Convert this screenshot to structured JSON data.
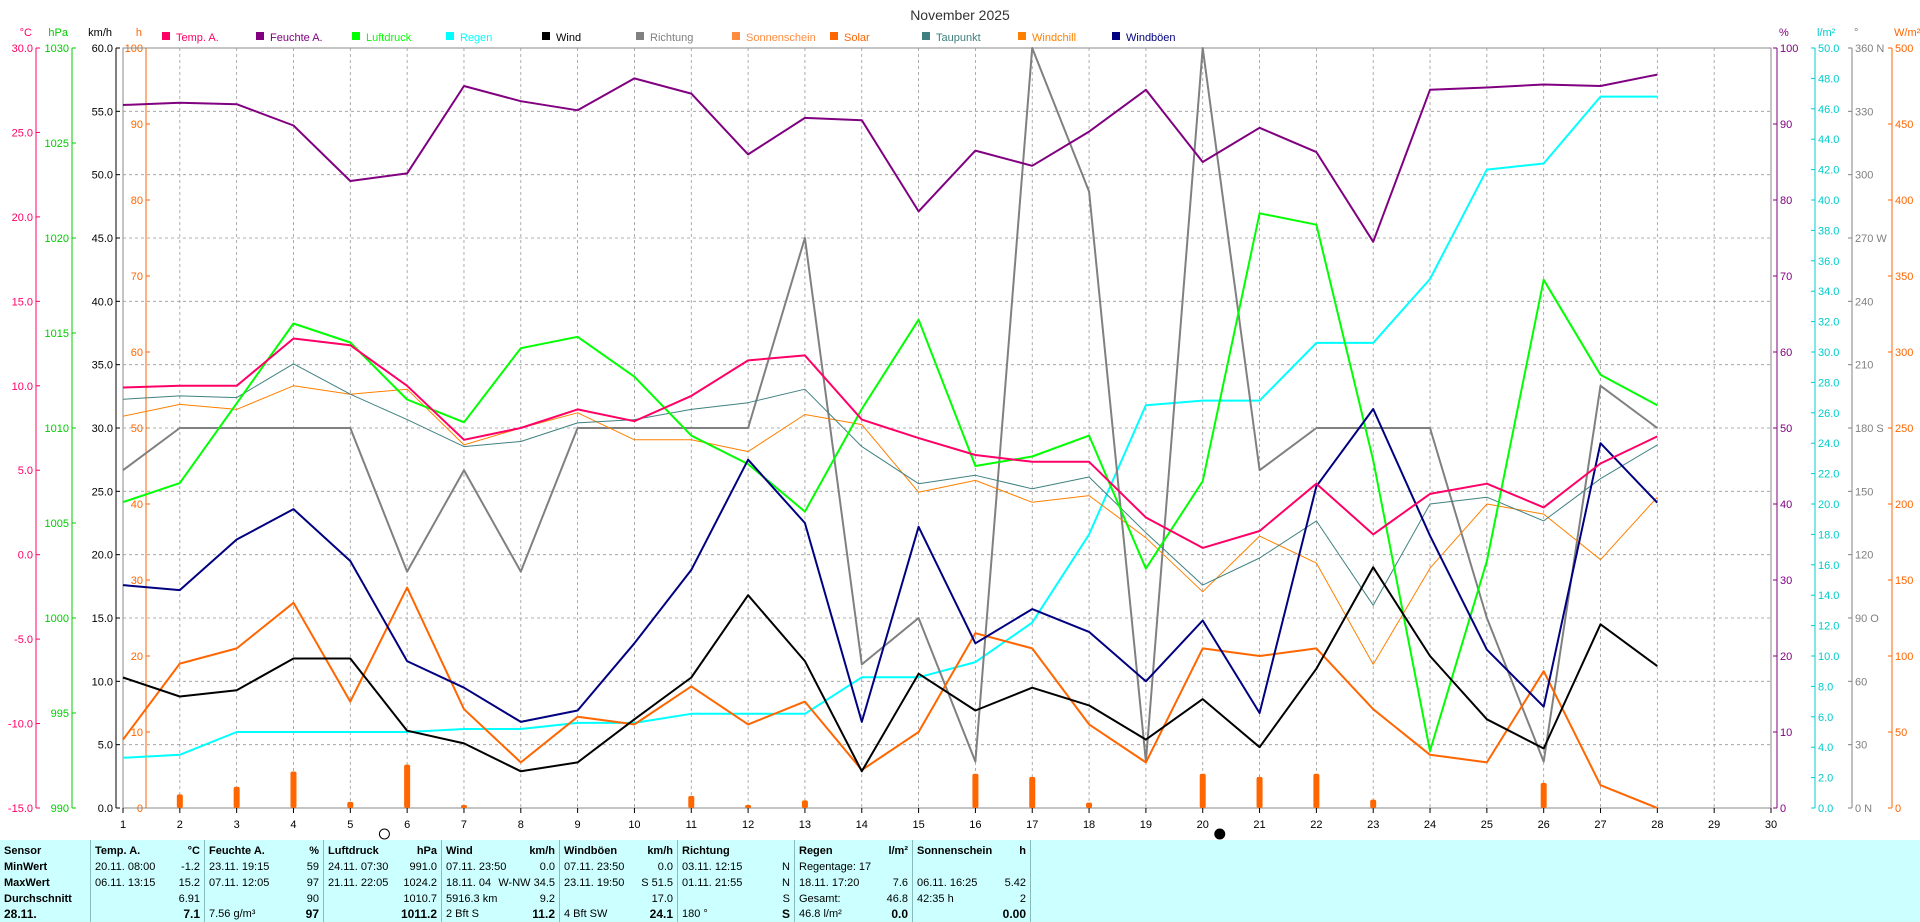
{
  "title": "November 2025",
  "left_axes": [
    {
      "unit": "°C",
      "color": "#ff0066",
      "ticks": [
        "30.0",
        "25.0",
        "20.0",
        "15.0",
        "10.0",
        "5.0",
        "0.0",
        "-5.0",
        "-10.0",
        "-15.0"
      ]
    },
    {
      "unit": "hPa",
      "color": "#00cc00",
      "ticks": [
        "1030",
        "1025",
        "1020",
        "1015",
        "1010",
        "1005",
        "1000",
        "995",
        "990"
      ]
    },
    {
      "unit": "km/h",
      "color": "#000000",
      "ticks": [
        "60.0",
        "55.0",
        "50.0",
        "45.0",
        "40.0",
        "35.0",
        "30.0",
        "25.0",
        "20.0",
        "15.0",
        "10.0",
        "5.0",
        "0.0"
      ]
    },
    {
      "unit": "h",
      "color": "#ff6600",
      "ticks": [
        "100",
        "90",
        "80",
        "70",
        "60",
        "50",
        "40",
        "30",
        "20",
        "10",
        "0"
      ]
    }
  ],
  "right_axes": [
    {
      "unit": "%",
      "color": "#800080",
      "ticks": [
        "100",
        "90",
        "80",
        "70",
        "60",
        "50",
        "40",
        "30",
        "20",
        "10",
        "0"
      ]
    },
    {
      "unit": "l/m²",
      "color": "#00cccc",
      "ticks": [
        "50.0",
        "48.0",
        "46.0",
        "44.0",
        "42.0",
        "40.0",
        "38.0",
        "36.0",
        "34.0",
        "32.0",
        "30.0",
        "28.0",
        "26.0",
        "24.0",
        "22.0",
        "20.0",
        "18.0",
        "16.0",
        "14.0",
        "12.0",
        "10.0",
        "8.0",
        "6.0",
        "4.0",
        "2.0",
        "0.0"
      ]
    },
    {
      "unit": "°",
      "color": "#808080",
      "ticks": [
        "360 N",
        "330",
        "300",
        "270 W",
        "240",
        "210",
        "180 S",
        "150",
        "120",
        "90 O",
        "60",
        "30",
        "0 N"
      ]
    },
    {
      "unit": "W/m²",
      "color": "#ff6600",
      "ticks": [
        "500",
        "450",
        "400",
        "350",
        "300",
        "250",
        "200",
        "150",
        "100",
        "50",
        "0"
      ]
    }
  ],
  "x_ticks": [
    "1",
    "2",
    "3",
    "4",
    "5",
    "6",
    "7",
    "8",
    "9",
    "10",
    "11",
    "12",
    "13",
    "14",
    "15",
    "16",
    "17",
    "18",
    "19",
    "20",
    "21",
    "22",
    "23",
    "24",
    "25",
    "26",
    "27",
    "28",
    "29",
    "30"
  ],
  "legend": [
    {
      "label": "Temp. A.",
      "color": "#ff0066"
    },
    {
      "label": "Feuchte A.",
      "color": "#800080"
    },
    {
      "label": "Luftdruck",
      "color": "#00ff00"
    },
    {
      "label": "Regen",
      "color": "#00ffff"
    },
    {
      "label": "Wind",
      "color": "#000000"
    },
    {
      "label": "Richtung",
      "color": "#808080"
    },
    {
      "label": "Sonnenschein",
      "color": "#ff8c40"
    },
    {
      "label": "Solar",
      "color": "#ff6600"
    },
    {
      "label": "Taupunkt",
      "color": "#408080"
    },
    {
      "label": "Windchill",
      "color": "#ff8000"
    },
    {
      "label": "Windböen",
      "color": "#000080"
    }
  ],
  "chart_data": {
    "type": "line",
    "x": [
      1,
      2,
      3,
      4,
      5,
      6,
      7,
      8,
      9,
      10,
      11,
      12,
      13,
      14,
      15,
      16,
      17,
      18,
      19,
      20,
      21,
      22,
      23,
      24,
      25,
      26,
      27,
      28
    ],
    "xlim": [
      1,
      30
    ],
    "series": [
      {
        "name": "Temp. A.",
        "axis": "°C",
        "ylim": [
          -15,
          30
        ],
        "values": [
          9.9,
          10.0,
          10.0,
          12.8,
          12.4,
          10.0,
          6.8,
          7.5,
          8.6,
          7.9,
          9.4,
          11.5,
          11.8,
          8.0,
          6.9,
          5.9,
          5.5,
          5.5,
          2.2,
          0.4,
          1.4,
          4.2,
          1.2,
          3.6,
          4.2,
          2.8,
          5.4,
          7.0
        ]
      },
      {
        "name": "Feuchte A.",
        "axis": "%",
        "ylim": [
          0,
          100
        ],
        "values": [
          92.5,
          92.8,
          92.6,
          89.8,
          82.5,
          83.5,
          95.0,
          93.0,
          91.8,
          96.0,
          94.0,
          86.0,
          90.8,
          90.5,
          78.5,
          86.5,
          84.5,
          89.0,
          94.5,
          85.0,
          89.5,
          86.3,
          74.5,
          94.5,
          94.8,
          95.2,
          95.0,
          96.5
        ]
      },
      {
        "name": "Luftdruck",
        "axis": "hPa",
        "ylim": [
          990,
          1030
        ],
        "values": [
          1006.1,
          1007.1,
          1011.3,
          1015.5,
          1014.5,
          1011.5,
          1010.3,
          1014.2,
          1014.8,
          1012.7,
          1009.6,
          1008.1,
          1005.6,
          1011.0,
          1015.7,
          1008.0,
          1008.5,
          1009.6,
          1002.6,
          1007.2,
          1021.3,
          1020.7,
          1008.3,
          993.0,
          1003.0,
          1017.8,
          1012.8,
          1011.2
        ]
      },
      {
        "name": "Regen",
        "axis": "l/m²",
        "ylim": [
          0,
          50
        ],
        "values": [
          3.3,
          3.5,
          5.0,
          5.0,
          5.0,
          5.0,
          5.2,
          5.2,
          5.6,
          5.6,
          6.2,
          6.2,
          6.2,
          8.6,
          8.6,
          9.6,
          12.2,
          18.0,
          26.5,
          26.8,
          26.8,
          30.6,
          30.6,
          34.8,
          42.0,
          42.4,
          46.8,
          46.8
        ]
      },
      {
        "name": "Wind",
        "axis": "km/h",
        "ylim": [
          0,
          60
        ],
        "values": [
          10.3,
          8.8,
          9.3,
          11.8,
          11.8,
          6.1,
          5.1,
          2.9,
          3.6,
          7.0,
          10.3,
          16.8,
          11.6,
          2.9,
          10.6,
          7.7,
          9.5,
          8.1,
          5.4,
          8.6,
          4.8,
          11.0,
          19.0,
          12.0,
          7.0,
          4.7,
          14.5,
          11.2
        ]
      },
      {
        "name": "Richtung",
        "axis": "°",
        "ylim": [
          0,
          360
        ],
        "values": [
          160,
          180,
          180,
          180,
          180,
          112,
          160,
          112,
          180,
          180,
          180,
          180,
          270,
          68,
          90,
          22,
          360,
          292,
          22,
          360,
          160,
          180,
          180,
          180,
          90,
          22,
          200,
          180
        ]
      },
      {
        "name": "Sonnenschein",
        "axis": "h",
        "ylim": [
          0,
          100
        ],
        "values": [
          0,
          0,
          0,
          0,
          0,
          0,
          0,
          0,
          0,
          0,
          0,
          0,
          0,
          0,
          0,
          0,
          0,
          0,
          0,
          0,
          0,
          0,
          0,
          0,
          0,
          0,
          0,
          0
        ]
      },
      {
        "name": "Solar",
        "axis": "W/m²",
        "ylim": [
          0,
          500
        ],
        "values": [
          45,
          95,
          105,
          135,
          70,
          145,
          65,
          30,
          60,
          55,
          80,
          55,
          70,
          25,
          50,
          115,
          105,
          55,
          30,
          105,
          100,
          105,
          65,
          35,
          30,
          90,
          15,
          0
        ]
      },
      {
        "name": "Taupunkt",
        "axis": "°C",
        "ylim": [
          -15,
          30
        ],
        "values": [
          9.2,
          9.4,
          9.3,
          11.3,
          9.5,
          8.0,
          6.4,
          6.7,
          7.8,
          8.0,
          8.6,
          9.0,
          9.8,
          6.4,
          4.2,
          4.7,
          3.9,
          4.6,
          1.3,
          -1.8,
          -0.2,
          2.0,
          -3.0,
          3.0,
          3.4,
          2.0,
          4.5,
          6.5
        ]
      },
      {
        "name": "Windchill",
        "axis": "°C",
        "ylim": [
          -15,
          30
        ],
        "values": [
          8.2,
          8.9,
          8.6,
          10.0,
          9.5,
          9.8,
          6.5,
          7.5,
          8.4,
          6.8,
          6.8,
          6.1,
          8.3,
          7.7,
          3.7,
          4.4,
          3.1,
          3.5,
          1.0,
          -2.2,
          1.1,
          -0.5,
          -6.5,
          -0.8,
          3.0,
          2.4,
          -0.3,
          3.4
        ]
      },
      {
        "name": "Windböen",
        "axis": "km/h",
        "ylim": [
          0,
          60
        ],
        "values": [
          17.6,
          17.2,
          21.2,
          23.6,
          19.5,
          11.6,
          9.5,
          6.8,
          7.7,
          13.0,
          18.8,
          27.5,
          22.5,
          6.8,
          22.2,
          13.0,
          15.7,
          13.9,
          10.0,
          14.8,
          7.5,
          25.4,
          31.5,
          21.5,
          12.5,
          8.0,
          28.8,
          24.1
        ]
      }
    ],
    "daily_bars": {
      "axis": "h",
      "name": "Sonnenschein",
      "x": [
        2,
        3,
        4,
        5,
        6,
        7,
        11,
        12,
        13,
        16,
        17,
        18,
        20,
        21,
        22,
        23,
        26
      ],
      "values": [
        1.8,
        2.8,
        4.8,
        0.8,
        5.7,
        0.4,
        1.6,
        0.4,
        1.0,
        4.5,
        4.1,
        0.7,
        4.5,
        4.1,
        4.5,
        1.1,
        3.3
      ]
    },
    "moon_phases": [
      {
        "day": 5.6,
        "phase": "full"
      },
      {
        "day": 20.3,
        "phase": "new"
      }
    ]
  },
  "stats": {
    "row_labels": [
      "Sensor",
      "MinWert",
      "MaxWert",
      "Durchschnitt",
      "28.11."
    ],
    "temp": {
      "title": "Temp. A.",
      "unit": "°C",
      "min": [
        "20.11.  08:00",
        "-1.2"
      ],
      "max": [
        "06.11.  13:15",
        "15.2"
      ],
      "avg": "6.91",
      "now": "7.1"
    },
    "hum": {
      "title": "Feuchte A.",
      "unit": "%",
      "min": [
        "23.11.  19:15",
        "59"
      ],
      "max": [
        "07.11.  12:05",
        "97"
      ],
      "avg": "90",
      "now_abs": "7.56 g/m³",
      "now": "97"
    },
    "press": {
      "title": "Luftdruck",
      "unit": "hPa",
      "min": [
        "24.11.  07:30",
        "991.0"
      ],
      "max": [
        "21.11.  22:05",
        "1024.2"
      ],
      "avg": "1010.7",
      "now": "1011.2"
    },
    "wind": {
      "title": "Wind",
      "unit": "km/h",
      "min": [
        "07.11.  23:50",
        "0.0"
      ],
      "max": [
        "18.11.  04",
        "W-NW 34.5"
      ],
      "avg_l": "5916.3 km",
      "avg": "9.2",
      "now_l": "2 Bft S",
      "now": "11.2"
    },
    "gust": {
      "title": "Windböen",
      "unit": "km/h",
      "min": [
        "07.11.  23:50",
        "0.0"
      ],
      "max": [
        "23.11.  19:50",
        "S 51.5"
      ],
      "avg": "17.0",
      "now_l": "4 Bft SW",
      "now": "24.1"
    },
    "dir": {
      "title": "Richtung",
      "min": [
        "03.11.  12:15",
        "N"
      ],
      "max": [
        "01.11.  21:55",
        "N"
      ],
      "avg": "S",
      "now_l": "180 °",
      "now": "S"
    },
    "rain": {
      "title": "Regen",
      "unit": "l/m²",
      "r1": "Regentage: 17",
      "max": [
        "18.11.  17:20",
        "7.6"
      ],
      "total": [
        "Gesamt:",
        "46.8"
      ],
      "now_l": "46.8 l/m²",
      "now": "0.0"
    },
    "sun": {
      "title": "Sonnenschein",
      "unit": "h",
      "max": [
        "06.11.  16:25",
        "5.42"
      ],
      "sum": [
        "42:35 h",
        "2"
      ],
      "now": "0.00"
    }
  }
}
